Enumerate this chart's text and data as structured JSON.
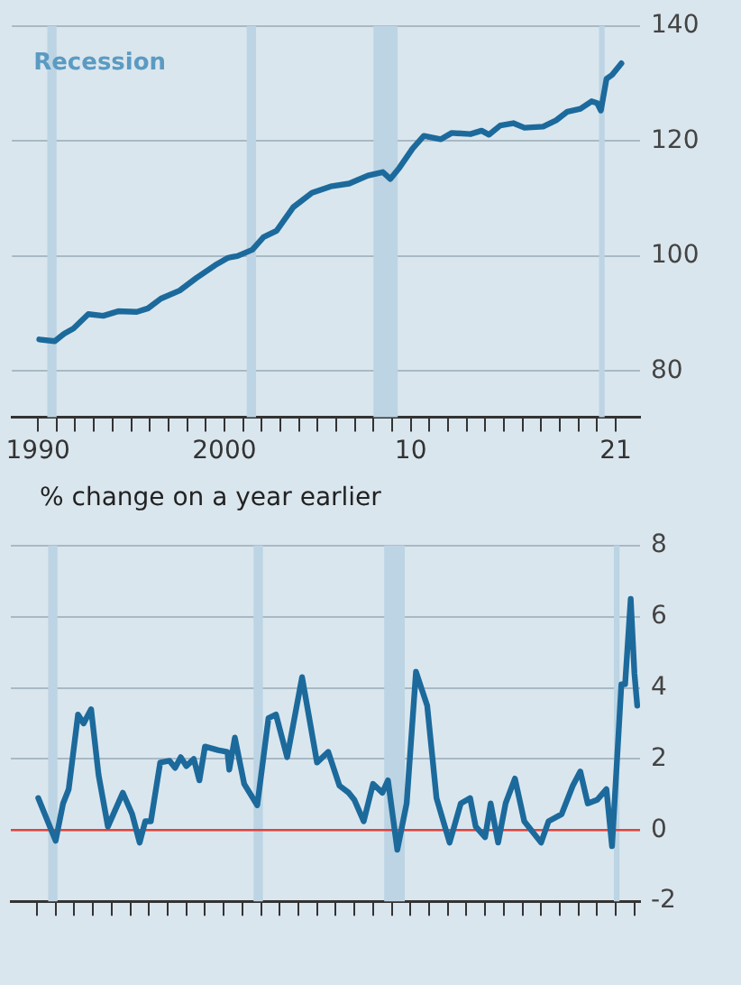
{
  "chart_data": [
    {
      "type": "line",
      "x": [
        1990.07,
        1990.9,
        1991.4,
        1991.9,
        1992.7,
        1993.5,
        1994.3,
        1995.3,
        1995.9,
        1996.6,
        1997.6,
        1998.5,
        1999.5,
        2000.2,
        2000.7,
        2001.5,
        2002.1,
        2002.8,
        2003.7,
        2004.7,
        2005.7,
        2006.7,
        2007.7,
        2008.5,
        2008.9,
        2009.4,
        2010.1,
        2010.7,
        2011.6,
        2012.2,
        2013.2,
        2013.8,
        2014.2,
        2014.8,
        2015.5,
        2016.1,
        2017.1,
        2017.8,
        2018.4,
        2019.1,
        2019.7,
        2020.0,
        2020.2,
        2020.5,
        2020.8,
        2021.3
      ],
      "series": [
        {
          "color": "#1c6a9c",
          "values": [
            85.5,
            85.2,
            86.5,
            87.4,
            89.9,
            89.6,
            90.4,
            90.3,
            90.9,
            92.6,
            94.0,
            96.2,
            98.4,
            99.7,
            100.0,
            101.1,
            103.3,
            104.4,
            108.5,
            111.0,
            112.1,
            112.6,
            114.0,
            114.6,
            113.4,
            115.4,
            118.7,
            120.9,
            120.3,
            121.4,
            121.2,
            121.8,
            121.1,
            122.7,
            123.1,
            122.3,
            122.5,
            123.6,
            125.1,
            125.6,
            126.9,
            126.6,
            125.3,
            130.8,
            131.5,
            133.5
          ]
        }
      ],
      "xlim": [
        1988.6,
        2022.3
      ],
      "xticks": [
        {
          "value": 1990,
          "label": "1990"
        },
        {
          "value": 1991,
          "label": null
        },
        {
          "value": 1992,
          "label": null
        },
        {
          "value": 1993,
          "label": null
        },
        {
          "value": 1994,
          "label": null
        },
        {
          "value": 1995,
          "label": null
        },
        {
          "value": 1996,
          "label": null
        },
        {
          "value": 1997,
          "label": null
        },
        {
          "value": 1998,
          "label": null
        },
        {
          "value": 1999,
          "label": null
        },
        {
          "value": 2000,
          "label": "2000"
        },
        {
          "value": 2001,
          "label": null
        },
        {
          "value": 2002,
          "label": null
        },
        {
          "value": 2003,
          "label": null
        },
        {
          "value": 2004,
          "label": null
        },
        {
          "value": 2005,
          "label": null
        },
        {
          "value": 2006,
          "label": null
        },
        {
          "value": 2007,
          "label": null
        },
        {
          "value": 2008,
          "label": null
        },
        {
          "value": 2009,
          "label": null
        },
        {
          "value": 2010,
          "label": "10"
        },
        {
          "value": 2011,
          "label": null
        },
        {
          "value": 2012,
          "label": null
        },
        {
          "value": 2013,
          "label": null
        },
        {
          "value": 2014,
          "label": null
        },
        {
          "value": 2015,
          "label": null
        },
        {
          "value": 2016,
          "label": null
        },
        {
          "value": 2017,
          "label": null
        },
        {
          "value": 2018,
          "label": null
        },
        {
          "value": 2019,
          "label": null
        },
        {
          "value": 2020,
          "label": null
        },
        {
          "value": 2021,
          "label": "21"
        }
      ],
      "ylim": [
        72,
        140
      ],
      "yticks": [
        80,
        100,
        120,
        140
      ],
      "grid": "y",
      "marker": "none",
      "line_style": "solid",
      "bands": [
        {
          "axis": "x",
          "from": 1990.5,
          "to": 1991.0,
          "color": "#bcd4e3"
        },
        {
          "axis": "x",
          "from": 2001.2,
          "to": 2001.7,
          "color": "#bcd4e3"
        },
        {
          "axis": "x",
          "from": 2008.0,
          "to": 2009.3,
          "color": "#bcd4e3"
        },
        {
          "axis": "x",
          "from": 2020.1,
          "to": 2020.4,
          "color": "#bcd4e3"
        }
      ],
      "annotations": [
        "Recession"
      ]
    },
    {
      "type": "line",
      "title": "% change on a year earlier",
      "x": [
        1990.07,
        1991.0,
        1991.4,
        1991.7,
        1992.2,
        1992.5,
        1992.9,
        1993.3,
        1993.8,
        1994.6,
        1995.1,
        1995.5,
        1995.8,
        1996.1,
        1996.6,
        1997.1,
        1997.4,
        1997.7,
        1998.0,
        1998.4,
        1998.7,
        1999.0,
        1999.7,
        2000.2,
        2000.3,
        2000.6,
        2001.1,
        2001.8,
        2002.4,
        2002.8,
        2003.4,
        2004.2,
        2005.0,
        2005.6,
        2006.2,
        2006.7,
        2007.0,
        2007.5,
        2008.0,
        2008.5,
        2008.8,
        2009.3,
        2009.8,
        2010.3,
        2010.9,
        2011.4,
        2012.1,
        2012.7,
        2013.2,
        2013.5,
        2014.0,
        2014.3,
        2014.7,
        2015.1,
        2015.6,
        2016.1,
        2017.0,
        2017.4,
        2018.1,
        2018.7,
        2019.1,
        2019.5,
        2020.0,
        2020.5,
        2020.8,
        2021.3,
        2021.5,
        2021.8,
        2022.0,
        2022.15
      ],
      "series": [
        {
          "color": "#1c6a9c",
          "values": [
            0.9,
            -0.3,
            0.75,
            1.15,
            3.25,
            3.0,
            3.4,
            1.55,
            0.1,
            1.05,
            0.45,
            -0.35,
            0.25,
            0.25,
            1.9,
            1.95,
            1.75,
            2.05,
            1.8,
            2.0,
            1.4,
            2.35,
            2.25,
            2.2,
            1.7,
            2.6,
            1.3,
            0.7,
            3.15,
            3.25,
            2.05,
            4.3,
            1.9,
            2.2,
            1.25,
            1.05,
            0.85,
            0.25,
            1.3,
            1.05,
            1.4,
            -0.55,
            0.75,
            4.45,
            3.5,
            0.9,
            -0.35,
            0.75,
            0.9,
            0.1,
            -0.2,
            0.75,
            -0.35,
            0.75,
            1.45,
            0.25,
            -0.35,
            0.25,
            0.45,
            1.25,
            1.65,
            0.75,
            0.85,
            1.15,
            -0.45,
            4.1,
            4.1,
            6.5,
            4.4,
            3.5
          ]
        }
      ],
      "xlim": [
        1988.6,
        2022.3
      ],
      "xticks": [
        {
          "value": 1990,
          "label": null
        },
        {
          "value": 1991,
          "label": null
        },
        {
          "value": 1992,
          "label": null
        },
        {
          "value": 1993,
          "label": null
        },
        {
          "value": 1994,
          "label": null
        },
        {
          "value": 1995,
          "label": null
        },
        {
          "value": 1996,
          "label": null
        },
        {
          "value": 1997,
          "label": null
        },
        {
          "value": 1998,
          "label": null
        },
        {
          "value": 1999,
          "label": null
        },
        {
          "value": 2000,
          "label": null
        },
        {
          "value": 2001,
          "label": null
        },
        {
          "value": 2002,
          "label": null
        },
        {
          "value": 2003,
          "label": null
        },
        {
          "value": 2004,
          "label": null
        },
        {
          "value": 2005,
          "label": null
        },
        {
          "value": 2006,
          "label": null
        },
        {
          "value": 2007,
          "label": null
        },
        {
          "value": 2008,
          "label": null
        },
        {
          "value": 2009,
          "label": null
        },
        {
          "value": 2010,
          "label": null
        },
        {
          "value": 2011,
          "label": null
        },
        {
          "value": 2012,
          "label": null
        },
        {
          "value": 2013,
          "label": null
        },
        {
          "value": 2014,
          "label": null
        },
        {
          "value": 2015,
          "label": null
        },
        {
          "value": 2016,
          "label": null
        },
        {
          "value": 2017,
          "label": null
        },
        {
          "value": 2018,
          "label": null
        },
        {
          "value": 2019,
          "label": null
        },
        {
          "value": 2020,
          "label": null
        },
        {
          "value": 2021,
          "label": null
        },
        {
          "value": 2022,
          "label": null
        }
      ],
      "ylim": [
        -2,
        8
      ],
      "yticks": [
        -2,
        0,
        2,
        4,
        6,
        8
      ],
      "grid": "y",
      "marker": "none",
      "line_style": "solid",
      "tick_labels": "y",
      "ref_lines": [
        {
          "axis": "y",
          "value": 0,
          "color": "#e3413a"
        }
      ],
      "bands": [
        {
          "axis": "x",
          "from": 1990.6,
          "to": 1991.1,
          "color": "#bcd4e3"
        },
        {
          "axis": "x",
          "from": 2001.6,
          "to": 2002.1,
          "color": "#bcd4e3"
        },
        {
          "axis": "x",
          "from": 2008.6,
          "to": 2009.7,
          "color": "#bcd4e3"
        },
        {
          "axis": "x",
          "from": 2020.9,
          "to": 2021.2,
          "color": "#bcd4e3"
        }
      ]
    }
  ]
}
